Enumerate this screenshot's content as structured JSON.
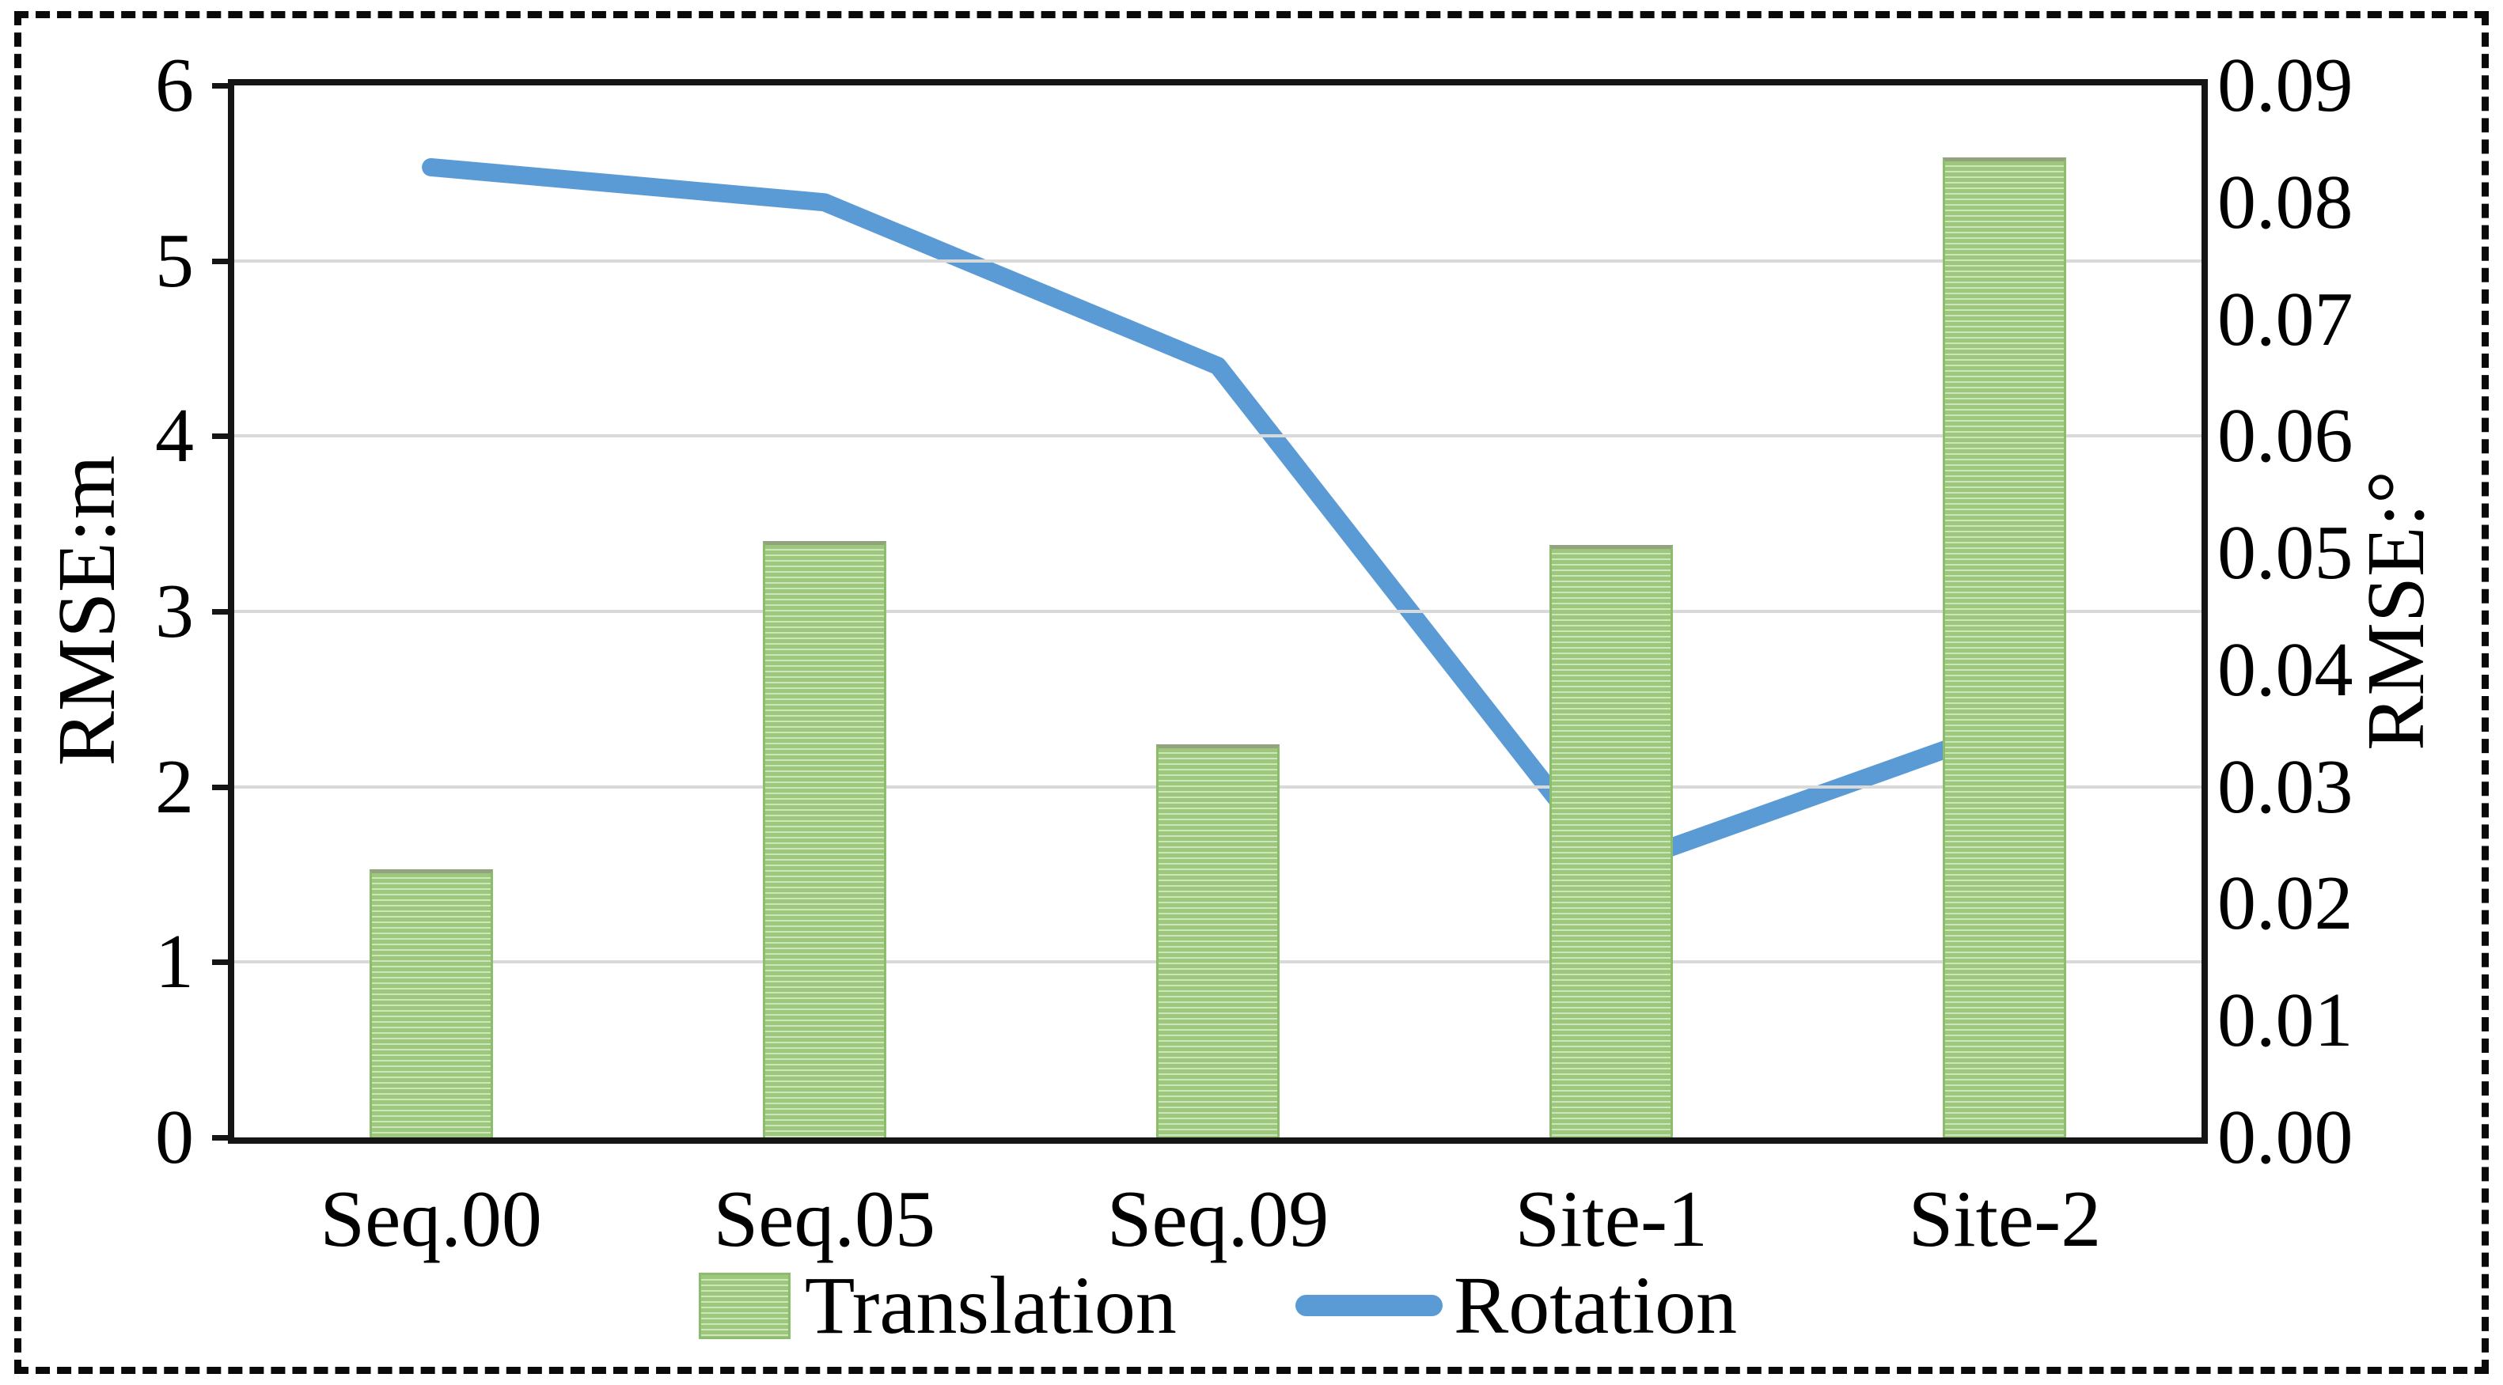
{
  "figure": {
    "kind": "academic bar-line combo figure",
    "background": "#ffffff",
    "frame_style": "black dashed rectangle"
  },
  "chart_data": {
    "type": "bar+line combo",
    "title": "",
    "categories": [
      "Seq.00",
      "Seq.05",
      "Seq.09",
      "Site-1",
      "Site-2"
    ],
    "series": [
      {
        "name": "Translation",
        "type": "bar",
        "axis": "left",
        "values": [
          1.53,
          3.4,
          2.24,
          3.38,
          5.59
        ],
        "color": "#9cc77d",
        "stripe_color": "#cde6ba",
        "edge_color": "#8bbd6c",
        "pattern": "horizontal-stripes"
      },
      {
        "name": "Rotation",
        "type": "line",
        "axis": "right",
        "values": [
          0.083,
          0.08,
          0.066,
          0.023,
          0.035
        ],
        "color": "#5b9bd5",
        "stroke_width": 23,
        "linecap": "round"
      }
    ],
    "left_axis": {
      "label": "RMSE:m",
      "min": 0,
      "max": 6,
      "tick_labels": [
        "0",
        "1",
        "2",
        "3",
        "4",
        "5",
        "6"
      ]
    },
    "right_axis": {
      "label": "RMSE:°",
      "min": 0,
      "max": 0.09,
      "tick_labels": [
        "0.00",
        "0.01",
        "0.02",
        "0.03",
        "0.04",
        "0.05",
        "0.06",
        "0.07",
        "0.08",
        "0.09"
      ]
    },
    "legend": {
      "position": "bottom-center",
      "entries": [
        "Translation",
        "Rotation"
      ]
    },
    "grid": true,
    "grid_color": "#d9d9d9",
    "axis_color": "#151515",
    "text_color": "#000000"
  }
}
